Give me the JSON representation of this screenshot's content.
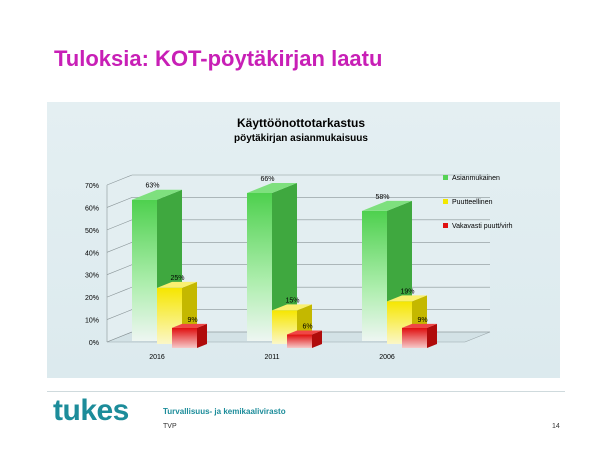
{
  "slide": {
    "title": "Tuloksia: KOT-pöytäkirjan laatu",
    "page_number": "14"
  },
  "footer": {
    "logo_text": "tukes",
    "agency": "Turvallisuus- ja kemikaalivirasto",
    "unit": "TVP"
  },
  "colors": {
    "title": "#c81fb6",
    "brand": "#1c8c9a",
    "asianmukainen": "#55d255",
    "puutteellinen": "#f2e800",
    "vakavasti": "#e01010"
  },
  "chart_data": {
    "type": "bar",
    "title": "Käyttöönottotarkastus",
    "subtitle": "pöytäkirjan asianmukaisuus",
    "categories": [
      "2016",
      "2011",
      "2006"
    ],
    "series": [
      {
        "name": "Asianmukainen",
        "values": [
          63,
          66,
          58
        ],
        "labels": [
          "63%",
          "66%",
          "58%"
        ],
        "color": "#55d255"
      },
      {
        "name": "Puutteellinen",
        "values": [
          25,
          15,
          19
        ],
        "labels": [
          "25%",
          "15%",
          "19%"
        ],
        "color": "#f2e800"
      },
      {
        "name": "Vakavasti puutt/virh",
        "values": [
          9,
          6,
          9
        ],
        "labels": [
          "9%",
          "6%",
          "9%"
        ],
        "color": "#e01010"
      }
    ],
    "y_ticks": [
      "0%",
      "10%",
      "20%",
      "30%",
      "40%",
      "50%",
      "60%",
      "70%"
    ],
    "ylim": [
      0,
      70
    ],
    "grid": true,
    "three_d": true,
    "legend_position": "right"
  }
}
